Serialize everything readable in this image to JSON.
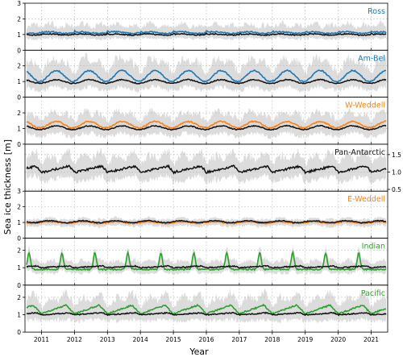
{
  "chart_data": {
    "type": "line",
    "title": "",
    "xlabel": "Year",
    "ylabel": "Sea ice thickness [m]",
    "x_ticks": [
      "2011",
      "2012",
      "2013",
      "2014",
      "2015",
      "2016",
      "2017",
      "2018",
      "2019",
      "2020",
      "2021"
    ],
    "xlim": [
      2010.5,
      2021.5
    ],
    "grid": true,
    "colors": {
      "blue": "#1f77b4",
      "orange": "#ff7f0e",
      "green": "#2ca02c",
      "black": "#111111",
      "band": "#dcdcdc",
      "grid": "#bbbbbb"
    },
    "panels": [
      {
        "name": "Ross",
        "color": "#1f77b4",
        "ylim": [
          0,
          3
        ],
        "yticks": [
          "0",
          "1",
          "2",
          "3"
        ],
        "tick_side": "left",
        "mean": 1.12,
        "amp": 0.18,
        "band_lo": 0.35,
        "band_hi": 0.75,
        "black_mean": 1.0,
        "black_amp": 0.12,
        "shape": "spike"
      },
      {
        "name": "Am-Bel",
        "color": "#1f77b4",
        "ylim": [
          0,
          3
        ],
        "yticks": [
          "0",
          "1",
          "2"
        ],
        "tick_side": "left",
        "mean": 1.35,
        "amp": 0.35,
        "band_lo": 0.6,
        "band_hi": 1.3,
        "black_mean": 1.0,
        "black_amp": 0.12,
        "shape": "broad"
      },
      {
        "name": "W-Weddell",
        "color": "#ff7f0e",
        "ylim": [
          0,
          3
        ],
        "yticks": [
          "0",
          "1",
          "2"
        ],
        "tick_side": "left",
        "mean": 1.25,
        "amp": 0.2,
        "band_lo": 0.6,
        "band_hi": 1.0,
        "black_mean": 1.05,
        "black_amp": 0.12,
        "shape": "broad"
      },
      {
        "name": "Pan-Antarctic",
        "color": "#111111",
        "ylim": [
          0.45,
          1.8
        ],
        "yticks": [
          "0.5",
          "1.0",
          "1.5"
        ],
        "tick_side": "right",
        "mean": 1.08,
        "amp": 0.18,
        "band_lo": 0.35,
        "band_hi": 0.55,
        "black_mean": 1.08,
        "black_amp": 0.18,
        "shape": "saw"
      },
      {
        "name": "E-Weddell",
        "color": "#ff7f0e",
        "ylim": [
          0,
          3
        ],
        "yticks": [
          "0",
          "1",
          "2",
          "3"
        ],
        "tick_side": "left",
        "mean": 1.0,
        "amp": 0.12,
        "band_lo": 0.3,
        "band_hi": 0.3,
        "black_mean": 1.05,
        "black_amp": 0.12,
        "shape": "flat"
      },
      {
        "name": "Indian",
        "color": "#2ca02c",
        "ylim": [
          0,
          2.7
        ],
        "yticks": [
          "0",
          "1",
          "2"
        ],
        "tick_side": "left",
        "mean": 1.0,
        "amp": 0.95,
        "band_lo": 0.3,
        "band_hi": 0.55,
        "black_mean": 1.05,
        "black_amp": 0.1,
        "shape": "peak"
      },
      {
        "name": "Pacific",
        "color": "#2ca02c",
        "ylim": [
          0,
          2.7
        ],
        "yticks": [
          "0",
          "1",
          "2"
        ],
        "tick_side": "left",
        "mean": 1.25,
        "amp": 0.5,
        "band_lo": 0.5,
        "band_hi": 1.0,
        "black_mean": 1.05,
        "black_amp": 0.12,
        "shape": "ramp"
      }
    ]
  }
}
